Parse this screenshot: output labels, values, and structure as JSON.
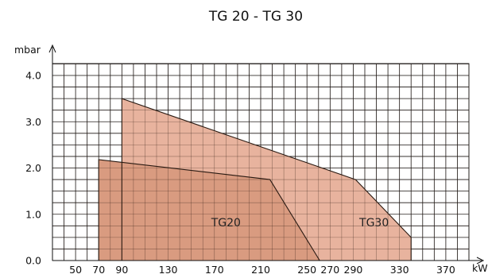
{
  "chart_data": {
    "type": "area",
    "title": "TG 20 - TG 30",
    "ylabel": "mbar",
    "xlabel": "kW",
    "xlim": [
      30,
      390
    ],
    "ylim": [
      0,
      4.0
    ],
    "x_ticks": [
      50,
      70,
      90,
      130,
      170,
      210,
      250,
      270,
      290,
      330,
      370
    ],
    "y_ticks": [
      0.0,
      1.0,
      2.0,
      3.0,
      4.0
    ],
    "y_tick_labels": [
      "0.0",
      "1.0",
      "2.0",
      "3.0",
      "4.0"
    ],
    "grid": true,
    "series": [
      {
        "name": "TG30",
        "color": "#e8b39e",
        "x": [
          90,
          90,
          292,
          340,
          340
        ],
        "y": [
          0.0,
          3.5,
          1.75,
          0.5,
          0.0
        ]
      },
      {
        "name": "TG20",
        "color": "#d99b80",
        "x": [
          70,
          70,
          218,
          261
        ],
        "y": [
          0.0,
          2.18,
          1.75,
          0.0
        ]
      }
    ]
  }
}
